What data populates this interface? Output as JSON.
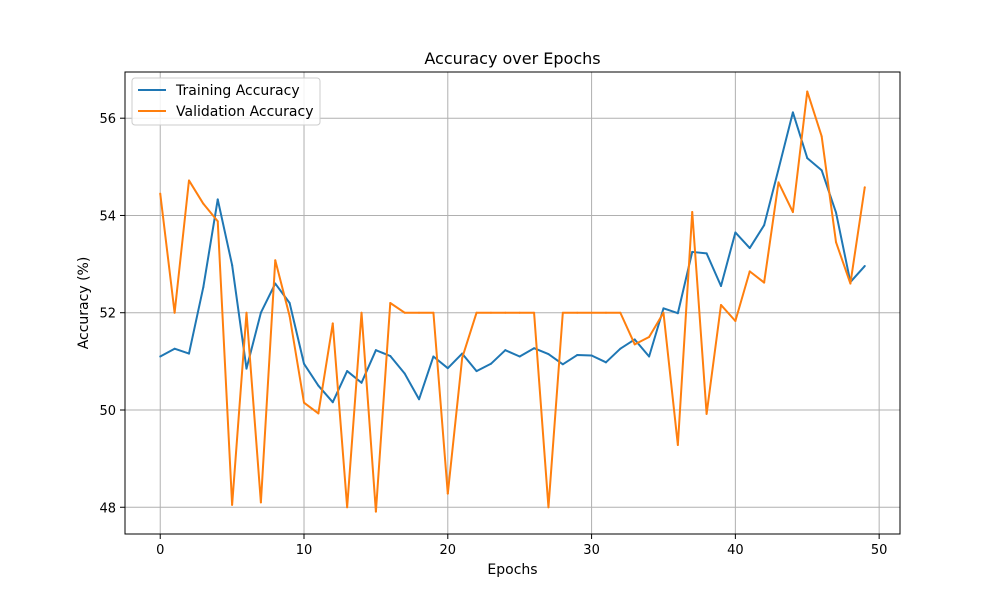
{
  "chart_data": {
    "type": "line",
    "title": "Accuracy over Epochs",
    "xlabel": "Epochs",
    "ylabel": "Accuracy (%)",
    "xlim": [
      -2.45,
      51.45
    ],
    "ylim": [
      47.45,
      56.95
    ],
    "xticks": [
      0,
      10,
      20,
      30,
      40,
      50
    ],
    "yticks": [
      48,
      50,
      52,
      54,
      56
    ],
    "grid": true,
    "legend_position": "upper-left",
    "x": [
      0,
      1,
      2,
      3,
      4,
      5,
      6,
      7,
      8,
      9,
      10,
      11,
      12,
      13,
      14,
      15,
      16,
      17,
      18,
      19,
      20,
      21,
      22,
      23,
      24,
      25,
      26,
      27,
      28,
      29,
      30,
      31,
      32,
      33,
      34,
      35,
      36,
      37,
      38,
      39,
      40,
      41,
      42,
      43,
      44,
      45,
      46,
      47,
      48,
      49
    ],
    "series": [
      {
        "name": "Training Accuracy",
        "color": "#1f77b4",
        "values": [
          51.1,
          51.26,
          51.16,
          52.53,
          54.33,
          52.98,
          50.85,
          52.0,
          52.6,
          52.2,
          50.95,
          50.5,
          50.16,
          50.8,
          50.56,
          51.23,
          51.11,
          50.75,
          50.22,
          51.1,
          50.86,
          51.16,
          50.8,
          50.95,
          51.23,
          51.1,
          51.27,
          51.15,
          50.94,
          51.13,
          51.12,
          50.98,
          51.26,
          51.45,
          51.1,
          52.09,
          51.99,
          53.25,
          53.22,
          52.55,
          53.65,
          53.33,
          53.8,
          54.95,
          56.12,
          55.18,
          54.93,
          54.06,
          52.63,
          52.96
        ]
      },
      {
        "name": "Validation Accuracy",
        "color": "#ff7f0e",
        "values": [
          54.45,
          52.0,
          54.72,
          54.24,
          53.88,
          48.05,
          52.0,
          48.1,
          53.08,
          51.93,
          50.15,
          49.93,
          51.78,
          48.0,
          52.0,
          47.91,
          52.2,
          52.0,
          52.0,
          52.0,
          48.28,
          51.07,
          52.0,
          52.0,
          52.0,
          52.0,
          52.0,
          48.0,
          52.0,
          52.0,
          52.0,
          52.0,
          52.0,
          51.35,
          51.5,
          52.0,
          49.28,
          54.07,
          49.92,
          52.16,
          51.83,
          52.85,
          52.62,
          54.68,
          54.07,
          56.55,
          55.63,
          53.45,
          52.6,
          54.58
        ]
      }
    ]
  }
}
